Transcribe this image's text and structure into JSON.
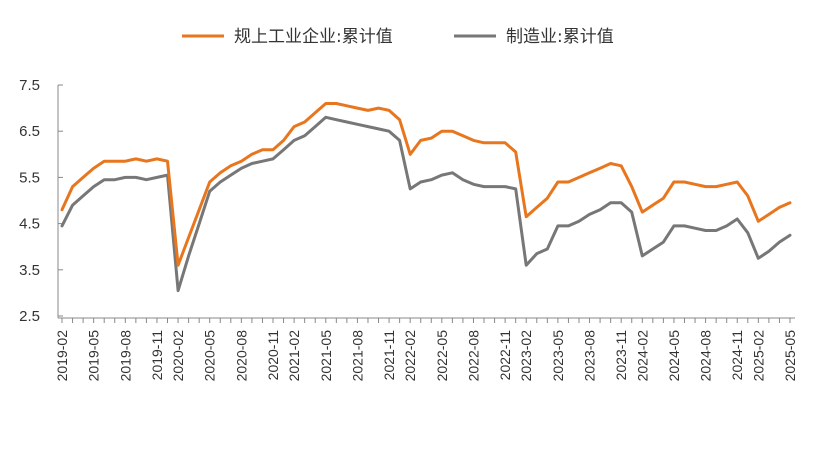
{
  "chart_data": {
    "type": "line",
    "title": "",
    "xlabel": "",
    "ylabel": "",
    "ylim": [
      2.5,
      7.5
    ],
    "yticks": [
      "2.5",
      "3.5",
      "4.5",
      "5.5",
      "6.5",
      "7.5"
    ],
    "grid": false,
    "legend_position": "top-center",
    "x_tick_labels": [
      "2019-02",
      "2019-05",
      "2019-08",
      "2019-11",
      "2020-02",
      "2020-05",
      "2020-08",
      "2020-11",
      "2021-02",
      "2021-05",
      "2021-08",
      "2021-11",
      "2022-02",
      "2022-05",
      "2022-08",
      "2022-11",
      "2023-02",
      "2023-05",
      "2023-08",
      "2023-11",
      "2024-02",
      "2024-05",
      "2024-08",
      "2024-11",
      "2025-02",
      "2025-05"
    ],
    "x": [
      "2019-02",
      "2019-03",
      "2019-04",
      "2019-05",
      "2019-06",
      "2019-07",
      "2019-08",
      "2019-09",
      "2019-10",
      "2019-11",
      "2019-12",
      "2020-02",
      "2020-03",
      "2020-04",
      "2020-05",
      "2020-06",
      "2020-07",
      "2020-08",
      "2020-09",
      "2020-10",
      "2020-11",
      "2020-12",
      "2021-02",
      "2021-03",
      "2021-04",
      "2021-05",
      "2021-06",
      "2021-07",
      "2021-08",
      "2021-09",
      "2021-10",
      "2021-11",
      "2021-12",
      "2022-02",
      "2022-03",
      "2022-04",
      "2022-05",
      "2022-06",
      "2022-07",
      "2022-08",
      "2022-09",
      "2022-10",
      "2022-11",
      "2022-12",
      "2023-02",
      "2023-03",
      "2023-04",
      "2023-05",
      "2023-06",
      "2023-07",
      "2023-08",
      "2023-09",
      "2023-10",
      "2023-11",
      "2023-12",
      "2024-02",
      "2024-03",
      "2024-04",
      "2024-05",
      "2024-06",
      "2024-07",
      "2024-08",
      "2024-09",
      "2024-10",
      "2024-11",
      "2024-12",
      "2025-02",
      "2025-03",
      "2025-04",
      "2025-05"
    ],
    "series": [
      {
        "name": "规上工业企业:累计值",
        "color": "#e8761e",
        "values": [
          4.8,
          5.3,
          5.5,
          5.7,
          5.85,
          5.85,
          5.85,
          5.9,
          5.85,
          5.9,
          5.85,
          3.6,
          4.2,
          4.8,
          5.4,
          5.6,
          5.75,
          5.85,
          6.0,
          6.1,
          6.1,
          6.3,
          6.6,
          6.7,
          6.9,
          7.1,
          7.1,
          7.05,
          7.0,
          6.95,
          7.0,
          6.95,
          6.75,
          6.0,
          6.3,
          6.35,
          6.5,
          6.5,
          6.4,
          6.3,
          6.25,
          6.25,
          6.25,
          6.05,
          4.65,
          4.85,
          5.05,
          5.4,
          5.4,
          5.5,
          5.6,
          5.7,
          5.8,
          5.75,
          5.3,
          4.75,
          4.9,
          5.05,
          5.4,
          5.4,
          5.35,
          5.3,
          5.3,
          5.35,
          5.4,
          5.1,
          4.55,
          4.7,
          4.85,
          4.95
        ]
      },
      {
        "name": "制造业:累计值",
        "color": "#777777",
        "values": [
          4.45,
          4.9,
          5.1,
          5.3,
          5.45,
          5.45,
          5.5,
          5.5,
          5.45,
          5.5,
          5.55,
          3.05,
          3.8,
          4.5,
          5.2,
          5.4,
          5.55,
          5.7,
          5.8,
          5.85,
          5.9,
          6.1,
          6.3,
          6.4,
          6.6,
          6.8,
          6.75,
          6.7,
          6.65,
          6.6,
          6.55,
          6.5,
          6.3,
          5.25,
          5.4,
          5.45,
          5.55,
          5.6,
          5.45,
          5.35,
          5.3,
          5.3,
          5.3,
          5.25,
          3.6,
          3.85,
          3.95,
          4.45,
          4.45,
          4.55,
          4.7,
          4.8,
          4.95,
          4.95,
          4.75,
          3.8,
          3.95,
          4.1,
          4.45,
          4.45,
          4.4,
          4.35,
          4.35,
          4.45,
          4.6,
          4.3,
          3.75,
          3.9,
          4.1,
          4.25
        ]
      }
    ]
  }
}
